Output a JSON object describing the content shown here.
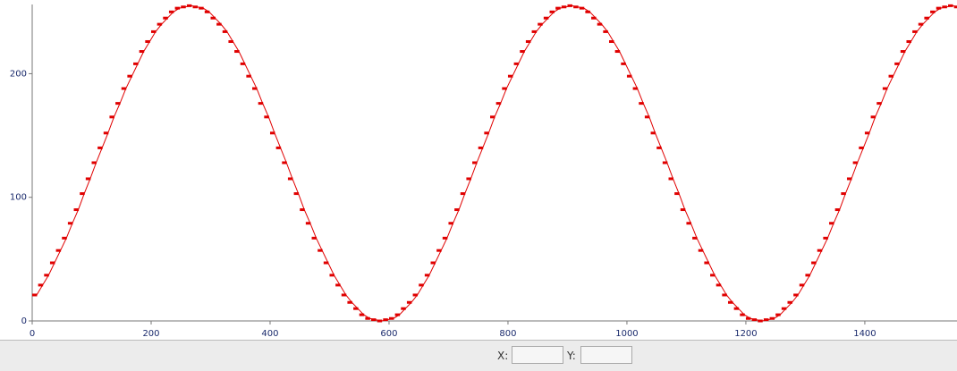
{
  "chart_data": {
    "type": "line",
    "x": [
      0,
      10,
      20,
      30,
      40,
      50,
      60,
      70,
      80,
      90,
      100,
      110,
      120,
      130,
      140,
      150,
      160,
      170,
      180,
      190,
      200,
      210,
      220,
      230,
      240,
      250,
      260,
      270,
      280,
      290,
      300,
      310,
      320,
      330,
      340,
      350,
      360,
      370,
      380,
      390,
      400,
      410,
      420,
      430,
      440,
      450,
      460,
      470,
      480,
      490,
      500,
      510,
      520,
      530,
      540,
      550,
      560,
      570,
      580,
      590,
      600,
      610,
      620,
      630,
      640,
      650,
      660,
      670,
      680,
      690,
      700,
      710,
      720,
      730,
      740,
      750,
      760,
      770,
      780,
      790,
      800,
      810,
      820,
      830,
      840,
      850,
      860,
      870,
      880,
      890,
      900,
      910,
      920,
      930,
      940,
      950,
      960,
      970,
      980,
      990,
      1000,
      1010,
      1020,
      1030,
      1040,
      1050,
      1060,
      1070,
      1080,
      1090,
      1100,
      1110,
      1120,
      1130,
      1140,
      1150,
      1160,
      1170,
      1180,
      1190,
      1200,
      1210,
      1220,
      1230,
      1240,
      1250,
      1260,
      1270,
      1280,
      1290,
      1300,
      1310,
      1320,
      1330,
      1340,
      1350,
      1360,
      1370,
      1380,
      1390,
      1400,
      1410,
      1420,
      1430,
      1440,
      1450,
      1460,
      1470,
      1480,
      1490,
      1500,
      1510,
      1520,
      1530,
      1540,
      1550
    ],
    "series": [
      {
        "color": "#e00000",
        "values": [
          21,
          29,
          37,
          47,
          57,
          67,
          79,
          90,
          103,
          115,
          128,
          140,
          152,
          165,
          176,
          188,
          198,
          208,
          218,
          226,
          234,
          240,
          245,
          250,
          253,
          254,
          255,
          254,
          253,
          250,
          245,
          240,
          234,
          226,
          218,
          208,
          198,
          188,
          176,
          165,
          152,
          140,
          128,
          115,
          103,
          90,
          79,
          67,
          57,
          47,
          37,
          29,
          21,
          15,
          10,
          5,
          2,
          1,
          0,
          1,
          2,
          5,
          10,
          15,
          21,
          29,
          37,
          47,
          57,
          67,
          79,
          90,
          103,
          115,
          128,
          140,
          152,
          165,
          176,
          188,
          198,
          208,
          218,
          226,
          234,
          240,
          245,
          250,
          253,
          254,
          255,
          254,
          253,
          250,
          245,
          240,
          234,
          226,
          218,
          208,
          198,
          188,
          176,
          165,
          152,
          140,
          128,
          115,
          103,
          90,
          79,
          67,
          57,
          47,
          37,
          29,
          21,
          15,
          10,
          5,
          2,
          1,
          0,
          1,
          2,
          5,
          10,
          15,
          21,
          29,
          37,
          47,
          57,
          67,
          79,
          90,
          103,
          115,
          128,
          140,
          152,
          165,
          176,
          188,
          198,
          208,
          218,
          226,
          234,
          240,
          245,
          250,
          253,
          254,
          255,
          254
        ]
      }
    ],
    "xlim": [
      0,
      1555
    ],
    "ylim": [
      0,
      256
    ],
    "xticks": [
      0,
      200,
      400,
      600,
      800,
      1000,
      1200,
      1400
    ],
    "yticks": [
      0,
      100,
      200
    ]
  },
  "status_bar": {
    "x_label": "X:",
    "y_label": "Y:"
  }
}
